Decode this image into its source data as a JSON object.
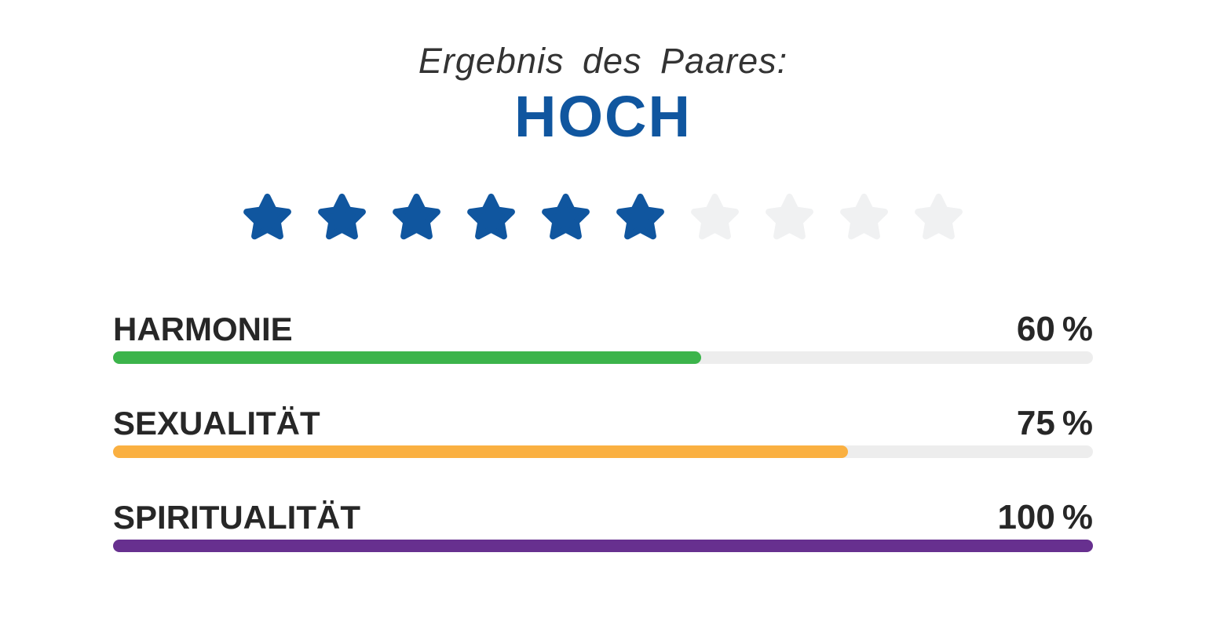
{
  "header": {
    "title": "Ergebnis des Paares:",
    "result": "HOCH"
  },
  "rating": {
    "stars_total": 10,
    "stars_filled": 6,
    "filled_color": "#10569F",
    "empty_color": "#F0F1F2"
  },
  "metrics": [
    {
      "label": "HARMONIE",
      "value": 60,
      "unit": "%",
      "bar_color": "#3CB44B"
    },
    {
      "label": "SEXUALITÄT",
      "value": 75,
      "unit": "%",
      "bar_color": "#FAB041"
    },
    {
      "label": "SPIRITUALITÄT",
      "value": 100,
      "unit": "%",
      "bar_color": "#67308F"
    }
  ],
  "colors": {
    "result_blue": "#10569F",
    "track_gray": "#EDEDED",
    "text_dark": "#272727",
    "title_gray": "#333333"
  },
  "chart_data": {
    "type": "bar",
    "orientation": "horizontal",
    "title": "Ergebnis des Paares:",
    "result_label": "HOCH",
    "star_rating": {
      "filled": 6,
      "total": 10
    },
    "categories": [
      "HARMONIE",
      "SEXUALITÄT",
      "SPIRITUALITÄT"
    ],
    "values": [
      60,
      75,
      100
    ],
    "unit": "%",
    "value_range": [
      0,
      100
    ],
    "bar_colors": [
      "#3CB44B",
      "#FAB041",
      "#67308F"
    ],
    "legend": "none",
    "grid": "off"
  }
}
